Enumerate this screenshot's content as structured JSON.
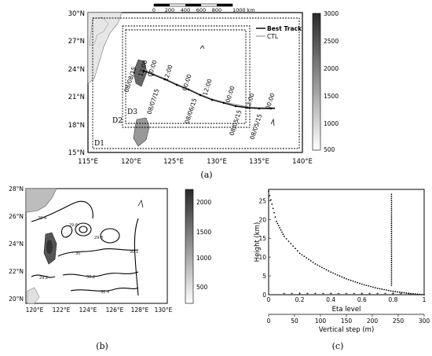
{
  "panel_a": {
    "scale_bar": {
      "labels": [
        "0",
        "200",
        "400",
        "600",
        "800",
        "1000 km"
      ]
    },
    "lat_labels": [
      "30°N",
      "27°N",
      "24°N",
      "21°N",
      "18°N",
      "15°N"
    ],
    "lon_labels": [
      "115°E",
      "120°E",
      "125°E",
      "130°E",
      "135°E",
      "140°E"
    ],
    "legend": {
      "best_track": "Best Track",
      "ctl": "CTL"
    },
    "domains": [
      "D1",
      "D2",
      "D3"
    ],
    "track_times": [
      "08/08/15",
      "12:00",
      "00:00",
      "08/07/15",
      "12:00",
      "00:00",
      "08/06/15",
      "12:00",
      "00:00",
      "08/05/15",
      "12:00",
      "00:00",
      "08/05/15"
    ],
    "colorbar": [
      "3000",
      "2500",
      "2000",
      "1500",
      "1000",
      "500"
    ],
    "caption": "(a)"
  },
  "panel_b": {
    "lat_labels": [
      "28°N",
      "26°N",
      "24°N",
      "22°N",
      "20°N"
    ],
    "lon_labels": [
      "120°E",
      "122°E",
      "124°E",
      "126°E",
      "128°E",
      "130°E"
    ],
    "contour_labels": [
      "29.4",
      "29.6",
      "29.8",
      "30",
      "30.2",
      "30.4",
      "30.1",
      "29.2"
    ],
    "colorbar": [
      "2000",
      "1500",
      "1000",
      "500"
    ],
    "caption": "(b)"
  },
  "panel_c": {
    "ylabel": "Height (km)",
    "xlabel_eta": "Eta level",
    "xlabel_step": "Vertical step (m)",
    "caption": "(c)"
  },
  "chart_data": [
    {
      "type": "scatter",
      "title": "",
      "ylabel": "Height (km)",
      "xlabel": "Eta level",
      "x_ticks": [
        "0",
        "0.2",
        "0.4",
        "0.6",
        "0.8",
        "1"
      ],
      "y_ticks": [
        "0",
        "5",
        "10",
        "15",
        "20",
        "25"
      ],
      "secondary_x_label": "Vertical step (m)",
      "secondary_x_ticks": [
        "0",
        "50",
        "100",
        "150",
        "200",
        "250",
        "300"
      ],
      "xlim": [
        0,
        1
      ],
      "ylim": [
        0,
        28
      ],
      "series": [
        {
          "values": [
            [
              0.0,
              27.5
            ],
            [
              0.05,
              19.5
            ],
            [
              0.1,
              15.5
            ],
            [
              0.2,
              11.0
            ],
            [
              0.3,
              8.2
            ],
            [
              0.4,
              6.0
            ],
            [
              0.5,
              4.2
            ],
            [
              0.6,
              2.8
            ],
            [
              0.7,
              1.7
            ],
            [
              0.8,
              0.9
            ],
            [
              0.9,
              0.35
            ],
            [
              1.0,
              0.0
            ]
          ]
        },
        {
          "values": [
            [
              0.79,
              2.5
            ],
            [
              0.79,
              27.0
            ]
          ]
        }
      ]
    }
  ]
}
